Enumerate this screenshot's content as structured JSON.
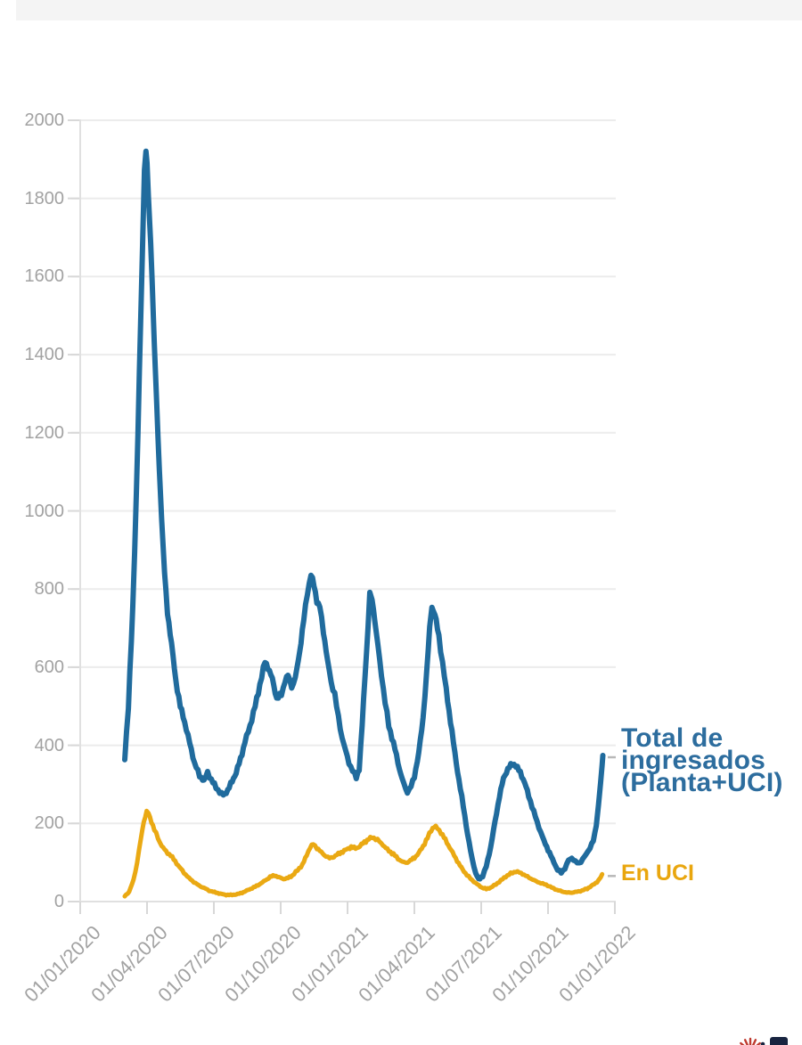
{
  "top_bar": {
    "visible": true,
    "color": "#f4f4f4"
  },
  "labels": {
    "total_line1": "Total de",
    "total_line2": "ingresados",
    "total_line3": "(Planta+UCI)",
    "uci": "En UCI"
  },
  "footer_logo": {
    "spark_color": "#bf3b30",
    "square_color": "#182440"
  },
  "chart_data": {
    "type": "line",
    "title": "",
    "xlabel": "",
    "ylabel": "",
    "grid": "horizontal",
    "legend_position": "direct-labels-right",
    "y_axis": {
      "ticks": [
        0,
        200,
        400,
        600,
        800,
        1000,
        1200,
        1400,
        1600,
        1800,
        2000
      ],
      "range": [
        0,
        2000
      ]
    },
    "x_axis": {
      "range_dates": [
        "2020-01-01",
        "2022-01-01"
      ],
      "ticks": [
        {
          "label": "01/01/2020",
          "month": 0
        },
        {
          "label": "01/04/2020",
          "month": 3
        },
        {
          "label": "01/07/2020",
          "month": 6
        },
        {
          "label": "01/10/2020",
          "month": 9
        },
        {
          "label": "01/01/2021",
          "month": 12
        },
        {
          "label": "01/04/2021",
          "month": 15
        },
        {
          "label": "01/07/2021",
          "month": 18
        },
        {
          "label": "01/10/2021",
          "month": 21
        },
        {
          "label": "01/01/2022",
          "month": 24
        }
      ]
    },
    "series": [
      {
        "id": "total",
        "name": "Total de ingresados (Planta+UCI)",
        "label_lines": [
          "Total de",
          "ingresados",
          "(Planta+UCI)"
        ],
        "color": "#206b9d",
        "points": [
          [
            "2020-03-01",
            365
          ],
          [
            "2020-03-06",
            500
          ],
          [
            "2020-03-12",
            750
          ],
          [
            "2020-03-17",
            1050
          ],
          [
            "2020-03-21",
            1350
          ],
          [
            "2020-03-25",
            1650
          ],
          [
            "2020-03-28",
            1880
          ],
          [
            "2020-03-30",
            1917
          ],
          [
            "2020-04-01",
            1890
          ],
          [
            "2020-04-03",
            1800
          ],
          [
            "2020-04-06",
            1690
          ],
          [
            "2020-04-08",
            1590
          ],
          [
            "2020-04-11",
            1430
          ],
          [
            "2020-04-14",
            1280
          ],
          [
            "2020-04-18",
            1100
          ],
          [
            "2020-04-21",
            980
          ],
          [
            "2020-04-25",
            840
          ],
          [
            "2020-04-29",
            740
          ],
          [
            "2020-05-04",
            660
          ],
          [
            "2020-05-10",
            565
          ],
          [
            "2020-05-16",
            500
          ],
          [
            "2020-05-22",
            460
          ],
          [
            "2020-05-29",
            405
          ],
          [
            "2020-06-05",
            355
          ],
          [
            "2020-06-12",
            322
          ],
          [
            "2020-06-18",
            310
          ],
          [
            "2020-06-23",
            330
          ],
          [
            "2020-06-28",
            312
          ],
          [
            "2020-07-04",
            292
          ],
          [
            "2020-07-09",
            280
          ],
          [
            "2020-07-14",
            272
          ],
          [
            "2020-07-20",
            285
          ],
          [
            "2020-07-26",
            308
          ],
          [
            "2020-08-01",
            330
          ],
          [
            "2020-08-07",
            365
          ],
          [
            "2020-08-13",
            408
          ],
          [
            "2020-08-20",
            450
          ],
          [
            "2020-08-27",
            500
          ],
          [
            "2020-09-03",
            555
          ],
          [
            "2020-09-10",
            615
          ],
          [
            "2020-09-14",
            600
          ],
          [
            "2020-09-20",
            570
          ],
          [
            "2020-09-26",
            520
          ],
          [
            "2020-10-02",
            530
          ],
          [
            "2020-10-07",
            565
          ],
          [
            "2020-10-11",
            580
          ],
          [
            "2020-10-16",
            550
          ],
          [
            "2020-10-21",
            570
          ],
          [
            "2020-10-27",
            640
          ],
          [
            "2020-11-02",
            720
          ],
          [
            "2020-11-07",
            790
          ],
          [
            "2020-11-12",
            837
          ],
          [
            "2020-11-16",
            810
          ],
          [
            "2020-11-20",
            770
          ],
          [
            "2020-11-24",
            755
          ],
          [
            "2020-11-29",
            690
          ],
          [
            "2020-12-04",
            620
          ],
          [
            "2020-12-09",
            560
          ],
          [
            "2020-12-14",
            532
          ],
          [
            "2020-12-19",
            470
          ],
          [
            "2020-12-24",
            420
          ],
          [
            "2020-12-29",
            385
          ],
          [
            "2021-01-03",
            355
          ],
          [
            "2021-01-08",
            335
          ],
          [
            "2021-01-13",
            318
          ],
          [
            "2021-01-17",
            340
          ],
          [
            "2021-01-21",
            450
          ],
          [
            "2021-01-25",
            580
          ],
          [
            "2021-01-29",
            700
          ],
          [
            "2021-02-01",
            790
          ],
          [
            "2021-02-04",
            775
          ],
          [
            "2021-02-08",
            720
          ],
          [
            "2021-02-12",
            655
          ],
          [
            "2021-02-17",
            580
          ],
          [
            "2021-02-22",
            510
          ],
          [
            "2021-02-27",
            450
          ],
          [
            "2021-03-05",
            390
          ],
          [
            "2021-03-11",
            340
          ],
          [
            "2021-03-17",
            300
          ],
          [
            "2021-03-22",
            280
          ],
          [
            "2021-03-27",
            295
          ],
          [
            "2021-04-01",
            320
          ],
          [
            "2021-04-07",
            380
          ],
          [
            "2021-04-13",
            470
          ],
          [
            "2021-04-18",
            590
          ],
          [
            "2021-04-22",
            700
          ],
          [
            "2021-04-25",
            755
          ],
          [
            "2021-04-29",
            735
          ],
          [
            "2021-05-04",
            680
          ],
          [
            "2021-05-09",
            610
          ],
          [
            "2021-05-14",
            545
          ],
          [
            "2021-05-20",
            460
          ],
          [
            "2021-05-26",
            380
          ],
          [
            "2021-06-01",
            310
          ],
          [
            "2021-06-07",
            245
          ],
          [
            "2021-06-13",
            170
          ],
          [
            "2021-06-19",
            110
          ],
          [
            "2021-06-24",
            72
          ],
          [
            "2021-06-28",
            57
          ],
          [
            "2021-07-03",
            65
          ],
          [
            "2021-07-08",
            90
          ],
          [
            "2021-07-14",
            140
          ],
          [
            "2021-07-20",
            205
          ],
          [
            "2021-07-26",
            270
          ],
          [
            "2021-08-01",
            315
          ],
          [
            "2021-08-07",
            340
          ],
          [
            "2021-08-13",
            352
          ],
          [
            "2021-08-18",
            348
          ],
          [
            "2021-08-24",
            330
          ],
          [
            "2021-08-30",
            305
          ],
          [
            "2021-09-05",
            270
          ],
          [
            "2021-09-12",
            230
          ],
          [
            "2021-09-19",
            190
          ],
          [
            "2021-09-26",
            155
          ],
          [
            "2021-10-03",
            125
          ],
          [
            "2021-10-09",
            100
          ],
          [
            "2021-10-14",
            82
          ],
          [
            "2021-10-19",
            74
          ],
          [
            "2021-10-24",
            85
          ],
          [
            "2021-10-29",
            105
          ],
          [
            "2021-11-03",
            112
          ],
          [
            "2021-11-08",
            102
          ],
          [
            "2021-11-13",
            98
          ],
          [
            "2021-11-18",
            108
          ],
          [
            "2021-11-23",
            122
          ],
          [
            "2021-11-28",
            138
          ],
          [
            "2021-12-02",
            155
          ],
          [
            "2021-12-06",
            195
          ],
          [
            "2021-12-09",
            245
          ],
          [
            "2021-12-12",
            305
          ],
          [
            "2021-12-14",
            345
          ],
          [
            "2021-12-15",
            374
          ]
        ]
      },
      {
        "id": "uci",
        "name": "En UCI",
        "label_lines": [
          "En UCI"
        ],
        "color": "#eaa913",
        "points": [
          [
            "2020-03-01",
            14
          ],
          [
            "2020-03-07",
            25
          ],
          [
            "2020-03-13",
            55
          ],
          [
            "2020-03-18",
            100
          ],
          [
            "2020-03-23",
            160
          ],
          [
            "2020-03-27",
            205
          ],
          [
            "2020-03-31",
            230
          ],
          [
            "2020-04-03",
            225
          ],
          [
            "2020-04-07",
            205
          ],
          [
            "2020-04-11",
            185
          ],
          [
            "2020-04-16",
            162
          ],
          [
            "2020-04-21",
            143
          ],
          [
            "2020-04-27",
            128
          ],
          [
            "2020-05-03",
            118
          ],
          [
            "2020-05-09",
            103
          ],
          [
            "2020-05-15",
            88
          ],
          [
            "2020-05-21",
            74
          ],
          [
            "2020-05-28",
            60
          ],
          [
            "2020-06-04",
            50
          ],
          [
            "2020-06-11",
            41
          ],
          [
            "2020-06-18",
            35
          ],
          [
            "2020-06-25",
            28
          ],
          [
            "2020-07-02",
            24
          ],
          [
            "2020-07-10",
            20
          ],
          [
            "2020-07-18",
            17
          ],
          [
            "2020-07-26",
            17
          ],
          [
            "2020-08-03",
            19
          ],
          [
            "2020-08-11",
            24
          ],
          [
            "2020-08-19",
            31
          ],
          [
            "2020-08-27",
            38
          ],
          [
            "2020-09-04",
            46
          ],
          [
            "2020-09-11",
            55
          ],
          [
            "2020-09-17",
            63
          ],
          [
            "2020-09-23",
            67
          ],
          [
            "2020-09-29",
            62
          ],
          [
            "2020-10-05",
            58
          ],
          [
            "2020-10-11",
            60
          ],
          [
            "2020-10-17",
            67
          ],
          [
            "2020-10-24",
            80
          ],
          [
            "2020-10-31",
            95
          ],
          [
            "2020-11-06",
            118
          ],
          [
            "2020-11-11",
            140
          ],
          [
            "2020-11-15",
            146
          ],
          [
            "2020-11-20",
            138
          ],
          [
            "2020-11-26",
            126
          ],
          [
            "2020-12-02",
            116
          ],
          [
            "2020-12-07",
            111
          ],
          [
            "2020-12-13",
            115
          ],
          [
            "2020-12-19",
            122
          ],
          [
            "2020-12-25",
            128
          ],
          [
            "2020-12-31",
            134
          ],
          [
            "2021-01-06",
            140
          ],
          [
            "2021-01-12",
            136
          ],
          [
            "2021-01-18",
            142
          ],
          [
            "2021-01-24",
            152
          ],
          [
            "2021-01-30",
            160
          ],
          [
            "2021-02-04",
            164
          ],
          [
            "2021-02-09",
            161
          ],
          [
            "2021-02-14",
            154
          ],
          [
            "2021-02-19",
            145
          ],
          [
            "2021-02-25",
            133
          ],
          [
            "2021-03-03",
            121
          ],
          [
            "2021-03-09",
            110
          ],
          [
            "2021-03-15",
            102
          ],
          [
            "2021-03-20",
            99
          ],
          [
            "2021-03-26",
            105
          ],
          [
            "2021-04-01",
            112
          ],
          [
            "2021-04-07",
            124
          ],
          [
            "2021-04-13",
            142
          ],
          [
            "2021-04-19",
            163
          ],
          [
            "2021-04-24",
            183
          ],
          [
            "2021-04-28",
            192
          ],
          [
            "2021-05-02",
            188
          ],
          [
            "2021-05-07",
            176
          ],
          [
            "2021-05-13",
            158
          ],
          [
            "2021-05-19",
            138
          ],
          [
            "2021-05-25",
            118
          ],
          [
            "2021-05-31",
            98
          ],
          [
            "2021-06-06",
            82
          ],
          [
            "2021-06-12",
            68
          ],
          [
            "2021-06-19",
            55
          ],
          [
            "2021-06-26",
            44
          ],
          [
            "2021-07-02",
            36
          ],
          [
            "2021-07-08",
            32
          ],
          [
            "2021-07-14",
            36
          ],
          [
            "2021-07-21",
            44
          ],
          [
            "2021-07-28",
            54
          ],
          [
            "2021-08-04",
            64
          ],
          [
            "2021-08-11",
            72
          ],
          [
            "2021-08-18",
            77
          ],
          [
            "2021-08-25",
            73
          ],
          [
            "2021-09-01",
            66
          ],
          [
            "2021-09-08",
            59
          ],
          [
            "2021-09-15",
            52
          ],
          [
            "2021-09-22",
            47
          ],
          [
            "2021-09-29",
            43
          ],
          [
            "2021-10-06",
            36
          ],
          [
            "2021-10-13",
            30
          ],
          [
            "2021-10-20",
            26
          ],
          [
            "2021-10-27",
            23
          ],
          [
            "2021-11-03",
            23
          ],
          [
            "2021-11-10",
            25
          ],
          [
            "2021-11-17",
            28
          ],
          [
            "2021-11-24",
            33
          ],
          [
            "2021-11-30",
            40
          ],
          [
            "2021-12-05",
            47
          ],
          [
            "2021-12-09",
            54
          ],
          [
            "2021-12-12",
            62
          ],
          [
            "2021-12-14",
            70
          ]
        ]
      }
    ]
  }
}
